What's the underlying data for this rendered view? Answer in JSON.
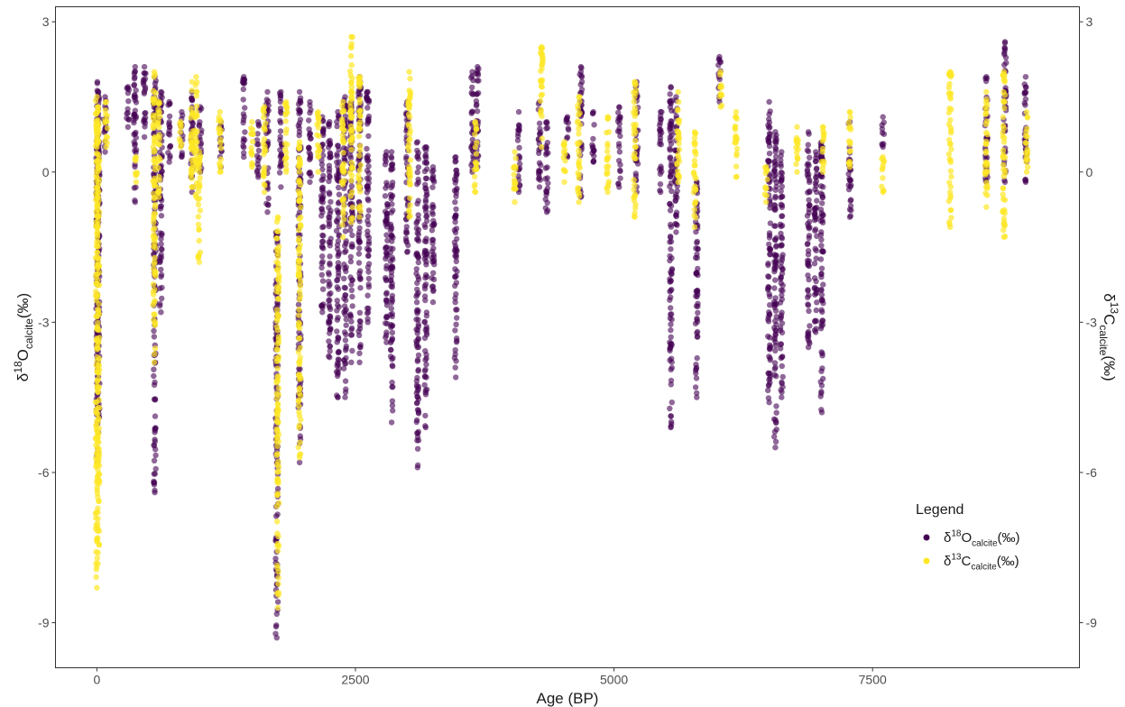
{
  "chart_data": {
    "type": "scatter",
    "xlabel": "Age (BP)",
    "ylabel_left": {
      "base": "δ",
      "sup": "18",
      "main": "O",
      "sub": "calcite",
      "unit": "(‰)"
    },
    "ylabel_right": {
      "base": "δ",
      "sup": "13",
      "main": "C",
      "sub": "calcite",
      "unit": "(‰)"
    },
    "xlim": [
      -400,
      9500
    ],
    "ylim": [
      -9.9,
      3.3
    ],
    "x_ticks": [
      0,
      2500,
      5000,
      7500
    ],
    "x_tick_labels": [
      "0",
      "2500",
      "5000",
      "7500"
    ],
    "y_ticks": [
      3,
      0,
      -3,
      -6,
      -9
    ],
    "y_tick_labels": [
      "3",
      "0",
      "-3",
      "-6",
      "-9"
    ],
    "grid": false,
    "legend": {
      "title": "Legend",
      "position": "right",
      "entries": [
        {
          "base": "δ",
          "sup": "18",
          "main": "O",
          "sub": "calcite",
          "unit": "(‰)",
          "color": "#440154"
        },
        {
          "base": "δ",
          "sup": "13",
          "main": "C",
          "sub": "calcite",
          "unit": "(‰)",
          "color": "#FDE725"
        }
      ]
    },
    "series": [
      {
        "key": "d18O",
        "color": "#440154",
        "opacity": 0.6,
        "clusters": [
          {
            "x": 5,
            "ymin": -5.8,
            "ymax": 1.8
          },
          {
            "x": 15,
            "ymin": -5.2,
            "ymax": 1.6
          },
          {
            "x": 80,
            "ymin": 0.4,
            "ymax": 1.5
          },
          {
            "x": 300,
            "ymin": 0.9,
            "ymax": 1.7
          },
          {
            "x": 370,
            "ymin": -0.6,
            "ymax": 2.1
          },
          {
            "x": 460,
            "ymin": 0.7,
            "ymax": 2.1
          },
          {
            "x": 560,
            "ymin": -6.4,
            "ymax": 1.9
          },
          {
            "x": 620,
            "ymin": -2.8,
            "ymax": 1.6
          },
          {
            "x": 700,
            "ymin": 0.2,
            "ymax": 1.4
          },
          {
            "x": 820,
            "ymin": 0.3,
            "ymax": 1.2
          },
          {
            "x": 920,
            "ymin": -0.4,
            "ymax": 1.6
          },
          {
            "x": 1000,
            "ymin": 0.0,
            "ymax": 1.3
          },
          {
            "x": 1200,
            "ymin": 0.1,
            "ymax": 1.0
          },
          {
            "x": 1420,
            "ymin": 0.3,
            "ymax": 1.9
          },
          {
            "x": 1560,
            "ymin": -0.1,
            "ymax": 1.0
          },
          {
            "x": 1650,
            "ymin": -0.8,
            "ymax": 1.6
          },
          {
            "x": 1740,
            "ymin": -9.3,
            "ymax": -1.2
          },
          {
            "x": 1780,
            "ymin": -0.3,
            "ymax": 1.6
          },
          {
            "x": 1960,
            "ymin": -5.8,
            "ymax": 1.6
          },
          {
            "x": 2060,
            "ymin": -0.2,
            "ymax": 1.4
          },
          {
            "x": 2180,
            "ymin": -2.8,
            "ymax": 1.1
          },
          {
            "x": 2250,
            "ymin": -3.7,
            "ymax": 1.0
          },
          {
            "x": 2330,
            "ymin": -4.5,
            "ymax": 1.2
          },
          {
            "x": 2400,
            "ymin": -4.5,
            "ymax": 1.5
          },
          {
            "x": 2460,
            "ymin": -3.8,
            "ymax": 1.4
          },
          {
            "x": 2540,
            "ymin": -3.8,
            "ymax": 1.9
          },
          {
            "x": 2620,
            "ymin": -3.0,
            "ymax": 1.6
          },
          {
            "x": 2800,
            "ymin": -3.4,
            "ymax": 0.4
          },
          {
            "x": 2850,
            "ymin": -5.0,
            "ymax": 0.4
          },
          {
            "x": 3000,
            "ymin": -1.6,
            "ymax": 1.4
          },
          {
            "x": 3100,
            "ymin": -5.9,
            "ymax": 0.6
          },
          {
            "x": 3180,
            "ymin": -5.1,
            "ymax": 0.5
          },
          {
            "x": 3250,
            "ymin": -2.6,
            "ymax": 0.1
          },
          {
            "x": 3470,
            "ymin": -4.1,
            "ymax": 0.3
          },
          {
            "x": 3630,
            "ymin": 0.0,
            "ymax": 2.0
          },
          {
            "x": 3680,
            "ymin": 0.1,
            "ymax": 2.1
          },
          {
            "x": 4080,
            "ymin": -0.4,
            "ymax": 1.2
          },
          {
            "x": 4280,
            "ymin": -0.3,
            "ymax": 1.4
          },
          {
            "x": 4350,
            "ymin": -0.8,
            "ymax": 1.0
          },
          {
            "x": 4550,
            "ymin": 0.3,
            "ymax": 1.1
          },
          {
            "x": 4680,
            "ymin": -0.5,
            "ymax": 2.1
          },
          {
            "x": 4800,
            "ymin": 0.2,
            "ymax": 1.2
          },
          {
            "x": 5050,
            "ymin": -0.3,
            "ymax": 1.3
          },
          {
            "x": 5220,
            "ymin": -0.4,
            "ymax": 1.8
          },
          {
            "x": 5450,
            "ymin": -0.4,
            "ymax": 1.2
          },
          {
            "x": 5550,
            "ymin": -5.1,
            "ymax": 1.7
          },
          {
            "x": 5600,
            "ymin": -1.2,
            "ymax": 1.5
          },
          {
            "x": 5800,
            "ymin": -4.5,
            "ymax": -0.2
          },
          {
            "x": 6020,
            "ymin": 1.4,
            "ymax": 2.3
          },
          {
            "x": 6500,
            "ymin": -4.6,
            "ymax": 1.4
          },
          {
            "x": 6560,
            "ymin": -5.5,
            "ymax": 0.8
          },
          {
            "x": 6620,
            "ymin": -4.5,
            "ymax": 0.4
          },
          {
            "x": 6880,
            "ymin": -3.5,
            "ymax": 0.8
          },
          {
            "x": 6950,
            "ymin": -3.2,
            "ymax": 0.4
          },
          {
            "x": 7010,
            "ymin": -4.8,
            "ymax": 0.6
          },
          {
            "x": 7280,
            "ymin": -0.9,
            "ymax": 1.0
          },
          {
            "x": 7600,
            "ymin": 0.5,
            "ymax": 1.1
          },
          {
            "x": 8600,
            "ymin": -0.2,
            "ymax": 1.9
          },
          {
            "x": 8780,
            "ymin": -0.2,
            "ymax": 2.6
          },
          {
            "x": 8980,
            "ymin": -0.2,
            "ymax": 1.9
          }
        ]
      },
      {
        "key": "d13C",
        "color": "#FDE725",
        "opacity": 0.7,
        "clusters": [
          {
            "x": 0,
            "ymin": -8.3,
            "ymax": 1.5
          },
          {
            "x": 12,
            "ymin": -7.6,
            "ymax": 1.3
          },
          {
            "x": 90,
            "ymin": 0.5,
            "ymax": 1.4
          },
          {
            "x": 380,
            "ymin": -0.2,
            "ymax": 0.3
          },
          {
            "x": 555,
            "ymin": -3.8,
            "ymax": 2.0
          },
          {
            "x": 600,
            "ymin": -0.5,
            "ymax": 1.4
          },
          {
            "x": 810,
            "ymin": 0.5,
            "ymax": 1.0
          },
          {
            "x": 920,
            "ymin": -0.3,
            "ymax": 1.8
          },
          {
            "x": 960,
            "ymin": -0.5,
            "ymax": 1.9
          },
          {
            "x": 990,
            "ymin": -1.8,
            "ymax": 0.4
          },
          {
            "x": 1190,
            "ymin": 0.0,
            "ymax": 1.2
          },
          {
            "x": 1500,
            "ymin": 0.1,
            "ymax": 1.0
          },
          {
            "x": 1620,
            "ymin": -0.4,
            "ymax": 1.3
          },
          {
            "x": 1750,
            "ymin": -8.7,
            "ymax": -0.9
          },
          {
            "x": 1830,
            "ymin": 0.0,
            "ymax": 1.4
          },
          {
            "x": 1960,
            "ymin": -5.7,
            "ymax": 0.6
          },
          {
            "x": 2140,
            "ymin": 0.0,
            "ymax": 1.2
          },
          {
            "x": 2380,
            "ymin": -1.3,
            "ymax": 1.4
          },
          {
            "x": 2460,
            "ymin": -1.0,
            "ymax": 2.7
          },
          {
            "x": 2540,
            "ymin": -0.9,
            "ymax": 1.9
          },
          {
            "x": 3020,
            "ymin": -0.9,
            "ymax": 2.0
          },
          {
            "x": 3660,
            "ymin": -0.4,
            "ymax": 1.0
          },
          {
            "x": 4040,
            "ymin": -0.6,
            "ymax": 0.4
          },
          {
            "x": 4300,
            "ymin": 0.5,
            "ymax": 2.5
          },
          {
            "x": 4520,
            "ymin": -0.2,
            "ymax": 0.6
          },
          {
            "x": 4660,
            "ymin": -0.6,
            "ymax": 1.5
          },
          {
            "x": 4940,
            "ymin": -0.4,
            "ymax": 1.1
          },
          {
            "x": 5200,
            "ymin": -0.9,
            "ymax": 1.8
          },
          {
            "x": 5620,
            "ymin": -0.2,
            "ymax": 1.6
          },
          {
            "x": 5780,
            "ymin": -1.1,
            "ymax": 0.8
          },
          {
            "x": 6030,
            "ymin": 1.3,
            "ymax": 2.0
          },
          {
            "x": 6180,
            "ymin": -0.1,
            "ymax": 1.2
          },
          {
            "x": 6470,
            "ymin": -0.6,
            "ymax": 0.1
          },
          {
            "x": 6770,
            "ymin": 0.0,
            "ymax": 0.9
          },
          {
            "x": 7020,
            "ymin": 0.0,
            "ymax": 0.9
          },
          {
            "x": 7280,
            "ymin": 0.1,
            "ymax": 1.2
          },
          {
            "x": 7600,
            "ymin": -0.4,
            "ymax": 0.3
          },
          {
            "x": 8250,
            "ymin": -1.1,
            "ymax": 2.0
          },
          {
            "x": 8600,
            "ymin": -0.7,
            "ymax": 1.6
          },
          {
            "x": 8770,
            "ymin": -1.3,
            "ymax": 2.0
          },
          {
            "x": 8990,
            "ymin": 0.0,
            "ymax": 1.2
          }
        ]
      }
    ]
  }
}
